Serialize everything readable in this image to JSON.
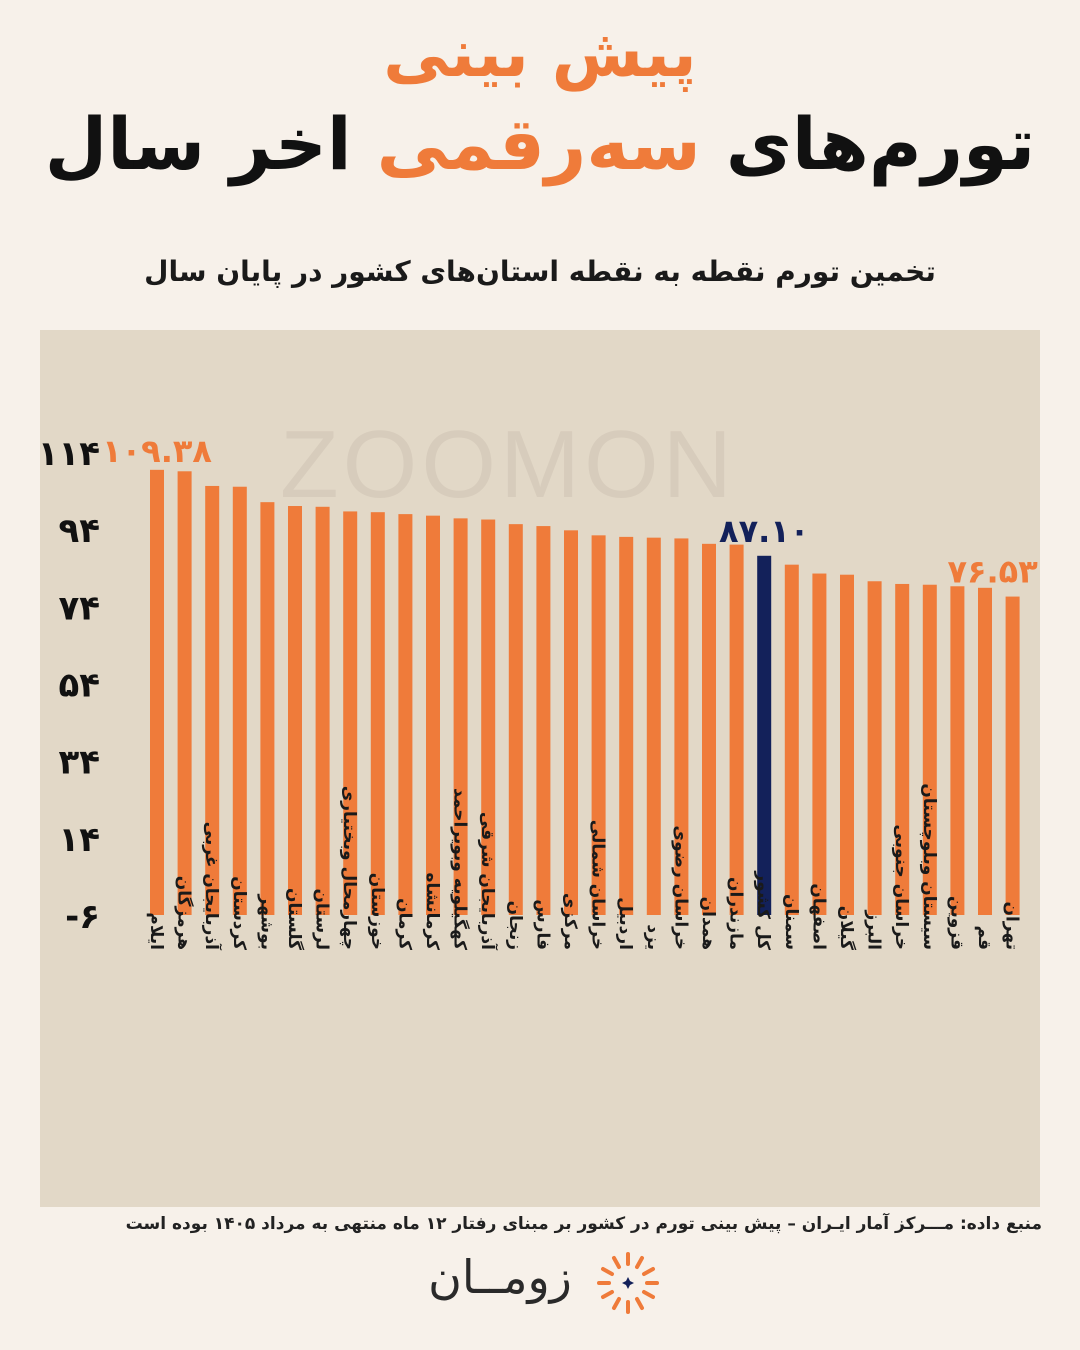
{
  "header": {
    "title_top": "پیش بینی",
    "title_main_part1": "تورم‌های",
    "title_main_accent": "سه‌رقمی",
    "title_main_part2": "اخر سال",
    "subtitle": "تخمین تورم نقطه به نقطه استان‌های کشور در پایان سال"
  },
  "watermark": "ZOOMON",
  "source": "منبع داده: مـــرکز آمار ایـران – پیش بینی تورم در کشور بر مبنای رفتار ۱۲ ماه منتهی به مرداد ۱۴۰۵ بوده است",
  "logo_text": "زومــان",
  "colors": {
    "background": "#f7f1ea",
    "plot_background": "#e2d8c7",
    "bar": "#ef7b3a",
    "highlight_bar": "#13215a",
    "accent_text": "#ef7b3a"
  },
  "chart_data": {
    "type": "bar",
    "categories": [
      "ایلام",
      "هرمزگان",
      "آذربایجان غربی",
      "کردستان",
      "بوشهر",
      "گلستان",
      "لرستان",
      "چهارمحال وبختیاری",
      "خوزستان",
      "کرمان",
      "کرمانشاه",
      "کهگیلویه وبویراحمد",
      "آذربایجان شرقی",
      "زنجان",
      "فارس",
      "مرکزی",
      "خراسان شمالی",
      "اردبیل",
      "یزد",
      "خراسان رضوی",
      "همدان",
      "مازندران",
      "کل کشور",
      "سمنان",
      "اصفهان",
      "گیلان",
      "البرز",
      "خراسان جنوبی",
      "سیستان وبلوچستان",
      "قزوین",
      "قم",
      "تهران"
    ],
    "values": [
      109.38,
      109.0,
      105.2,
      105.0,
      101.0,
      100.0,
      99.8,
      98.6,
      98.4,
      97.9,
      97.5,
      96.8,
      96.5,
      95.3,
      94.8,
      93.7,
      92.4,
      92.0,
      91.8,
      91.6,
      90.2,
      90.0,
      87.1,
      84.8,
      82.5,
      82.2,
      80.5,
      79.8,
      79.6,
      79.2,
      78.8,
      76.53
    ],
    "highlight_index": 22,
    "highlight_color": "#13215a",
    "data_labels": [
      {
        "index": 0,
        "text": "۱۰۹.۳۸",
        "color": "#ef7b3a"
      },
      {
        "index": 22,
        "text": "۸۷.۱۰",
        "color": "#13215a"
      },
      {
        "index": 31,
        "text": "۷۶.۵۳",
        "color": "#ef7b3a"
      }
    ],
    "y_ticks": [
      -6,
      14,
      34,
      54,
      74,
      94,
      114
    ],
    "y_tick_labels": [
      "-۶",
      "۱۴",
      "۳۴",
      "۵۴",
      "۷۴",
      "۹۴",
      "۱۱۴"
    ],
    "ylim": [
      -6,
      114
    ],
    "grid": false,
    "legend": "none"
  }
}
